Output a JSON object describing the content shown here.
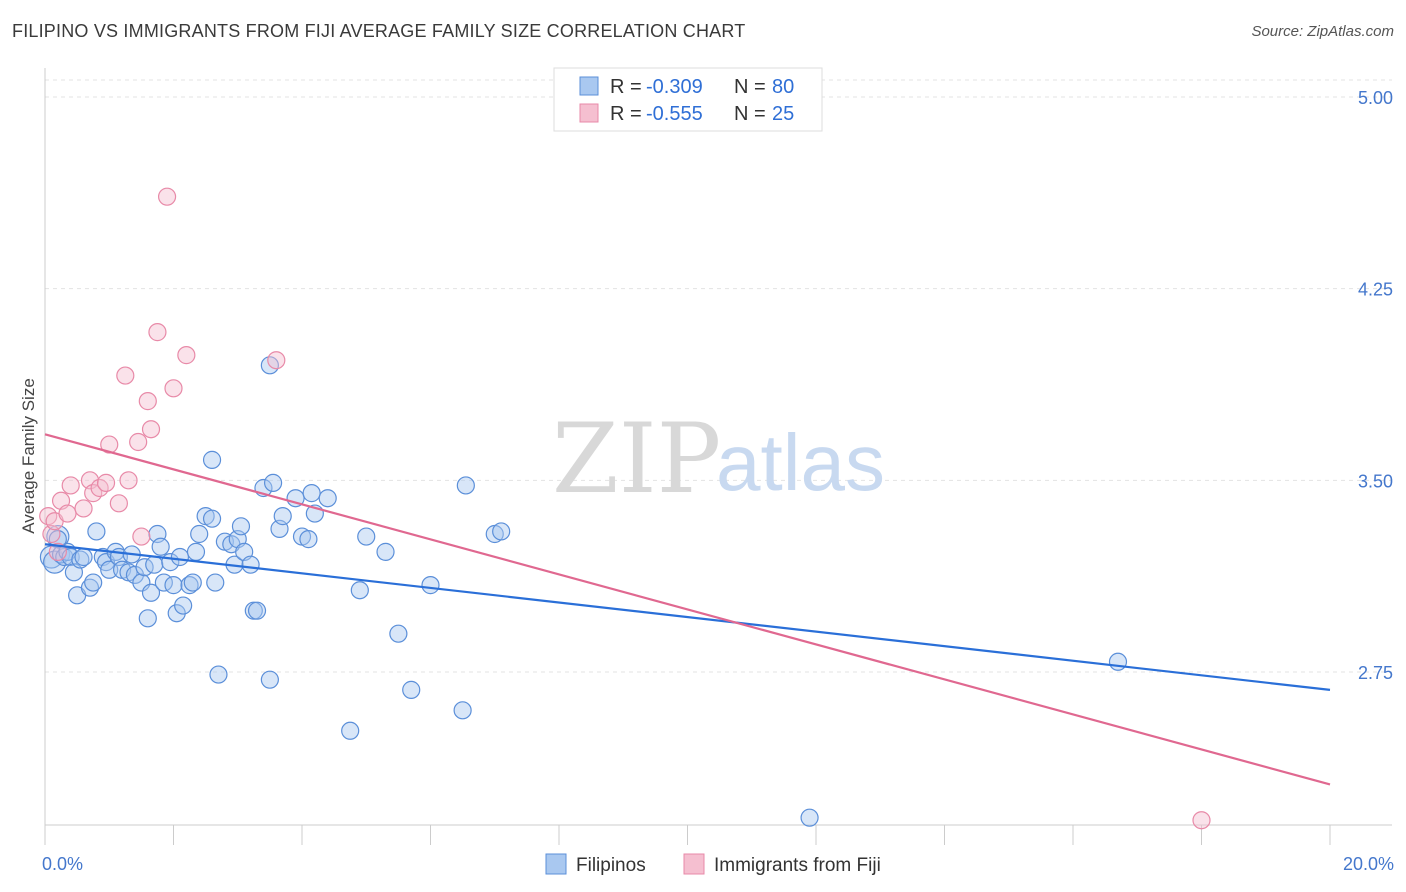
{
  "title": "FILIPINO VS IMMIGRANTS FROM FIJI AVERAGE FAMILY SIZE CORRELATION CHART",
  "source": "Source: ZipAtlas.com",
  "watermark": {
    "zip": "ZIP",
    "atlas": "atlas"
  },
  "legend": {
    "rows": [
      {
        "r_label": "R =",
        "r_value": "-0.309",
        "n_label": "N =",
        "n_value": "80"
      },
      {
        "r_label": "R =",
        "r_value": "-0.555",
        "n_label": "N =",
        "n_value": "25"
      }
    ]
  },
  "bottom_legend": [
    "Filipinos",
    "Immigrants from Fiji"
  ],
  "colors": {
    "filipinos_fill": "#a9c8f0",
    "filipinos_stroke": "#5b8fd9",
    "filipinos_line": "#2a6fd8",
    "fiji_fill": "#f5bfd0",
    "fiji_stroke": "#e88aa8",
    "fiji_line": "#e06890",
    "tick_text": "#4477cc",
    "grid": "#e3e3e3"
  },
  "chart_data": {
    "type": "scatter",
    "title": "FILIPINO VS IMMIGRANTS FROM FIJI AVERAGE FAMILY SIZE CORRELATION CHART",
    "xlabel": "",
    "ylabel": "Average Family Size",
    "xlim": [
      0,
      20
    ],
    "ylim": [
      2.05,
      5.1
    ],
    "x_tick_labels": [
      "0.0%",
      "20.0%"
    ],
    "y_ticks": [
      2.75,
      3.5,
      4.25,
      5.0
    ],
    "y_tick_labels": [
      "2.75",
      "3.50",
      "4.25",
      "5.00"
    ],
    "grid": true,
    "legend_position": "top-center",
    "series": [
      {
        "name": "Filipinos",
        "r": -0.309,
        "n": 80,
        "trend": {
          "x": [
            0,
            20
          ],
          "y": [
            3.25,
            2.68
          ]
        },
        "points": [
          [
            0.1,
            3.2
          ],
          [
            0.15,
            3.18
          ],
          [
            0.2,
            3.28
          ],
          [
            0.25,
            3.21
          ],
          [
            0.3,
            3.2
          ],
          [
            0.35,
            3.22
          ],
          [
            0.4,
            3.2
          ],
          [
            0.45,
            3.14
          ],
          [
            0.5,
            3.05
          ],
          [
            0.55,
            3.19
          ],
          [
            0.7,
            3.08
          ],
          [
            0.75,
            3.1
          ],
          [
            0.8,
            3.3
          ],
          [
            0.9,
            3.2
          ],
          [
            0.95,
            3.18
          ],
          [
            1.0,
            3.15
          ],
          [
            1.1,
            3.22
          ],
          [
            1.15,
            3.2
          ],
          [
            1.2,
            3.15
          ],
          [
            1.3,
            3.14
          ],
          [
            1.4,
            3.13
          ],
          [
            1.5,
            3.1
          ],
          [
            1.55,
            3.16
          ],
          [
            1.6,
            2.96
          ],
          [
            1.65,
            3.06
          ],
          [
            1.7,
            3.17
          ],
          [
            1.75,
            3.29
          ],
          [
            1.8,
            3.24
          ],
          [
            1.85,
            3.1
          ],
          [
            1.95,
            3.18
          ],
          [
            2.0,
            3.09
          ],
          [
            2.05,
            2.98
          ],
          [
            2.1,
            3.2
          ],
          [
            2.15,
            3.01
          ],
          [
            2.25,
            3.09
          ],
          [
            2.35,
            3.22
          ],
          [
            2.4,
            3.29
          ],
          [
            2.5,
            3.36
          ],
          [
            2.6,
            3.35
          ],
          [
            2.6,
            3.58
          ],
          [
            2.65,
            3.1
          ],
          [
            2.7,
            2.74
          ],
          [
            2.8,
            3.26
          ],
          [
            2.9,
            3.25
          ],
          [
            2.95,
            3.17
          ],
          [
            3.0,
            3.27
          ],
          [
            3.05,
            3.32
          ],
          [
            3.1,
            3.22
          ],
          [
            3.2,
            3.17
          ],
          [
            3.25,
            2.99
          ],
          [
            3.3,
            2.99
          ],
          [
            3.4,
            3.47
          ],
          [
            3.5,
            2.72
          ],
          [
            3.5,
            3.95
          ],
          [
            3.55,
            3.49
          ],
          [
            3.65,
            3.31
          ],
          [
            3.7,
            3.36
          ],
          [
            3.9,
            3.43
          ],
          [
            4.0,
            3.28
          ],
          [
            4.1,
            3.27
          ],
          [
            4.15,
            3.45
          ],
          [
            4.2,
            3.37
          ],
          [
            4.4,
            3.43
          ],
          [
            4.75,
            2.52
          ],
          [
            4.9,
            3.07
          ],
          [
            5.0,
            3.28
          ],
          [
            5.3,
            3.22
          ],
          [
            5.5,
            2.9
          ],
          [
            5.7,
            2.68
          ],
          [
            6.0,
            3.09
          ],
          [
            6.5,
            2.6
          ],
          [
            6.55,
            3.48
          ],
          [
            7.0,
            3.29
          ],
          [
            7.1,
            3.3
          ],
          [
            16.7,
            2.79
          ],
          [
            11.9,
            2.18
          ],
          [
            0.2,
            3.27
          ],
          [
            0.6,
            3.2
          ],
          [
            1.35,
            3.21
          ],
          [
            2.3,
            3.1
          ]
        ]
      },
      {
        "name": "Immigrants from Fiji",
        "r": -0.555,
        "n": 25,
        "trend": {
          "x": [
            0,
            20
          ],
          "y": [
            3.68,
            2.31
          ]
        },
        "points": [
          [
            0.05,
            3.36
          ],
          [
            0.1,
            3.29
          ],
          [
            0.15,
            3.34
          ],
          [
            0.2,
            3.22
          ],
          [
            0.25,
            3.42
          ],
          [
            0.35,
            3.37
          ],
          [
            0.4,
            3.48
          ],
          [
            0.6,
            3.39
          ],
          [
            0.7,
            3.5
          ],
          [
            0.75,
            3.45
          ],
          [
            0.85,
            3.47
          ],
          [
            0.95,
            3.49
          ],
          [
            1.0,
            3.64
          ],
          [
            1.15,
            3.41
          ],
          [
            1.25,
            3.91
          ],
          [
            1.3,
            3.5
          ],
          [
            1.45,
            3.65
          ],
          [
            1.5,
            3.28
          ],
          [
            1.6,
            3.81
          ],
          [
            1.65,
            3.7
          ],
          [
            1.75,
            4.08
          ],
          [
            1.9,
            4.61
          ],
          [
            2.0,
            3.86
          ],
          [
            2.2,
            3.99
          ],
          [
            3.6,
            3.97
          ]
        ],
        "extra_points": [
          [
            18.0,
            2.17
          ]
        ]
      }
    ]
  }
}
